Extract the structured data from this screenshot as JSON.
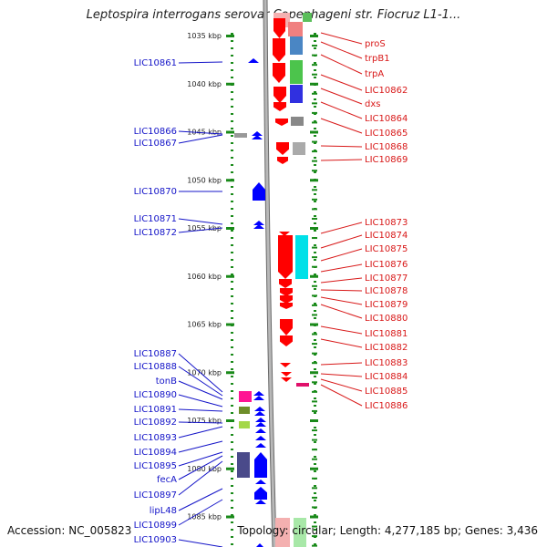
{
  "title": "Leptospira interrogans serovar Copenhageni str. Fiocruz L1-1...",
  "footer": {
    "accession": "Accession: NC_005823",
    "summary": "Topology: circular; Length: 4,277,185 bp; Genes: 3,436"
  },
  "kbp_ticks": [
    {
      "label": "1035 kbp",
      "kbp": 1035
    },
    {
      "label": "1040 kbp",
      "kbp": 1040
    },
    {
      "label": "1045 kbp",
      "kbp": 1045
    },
    {
      "label": "1050 kbp",
      "kbp": 1050
    },
    {
      "label": "1055 kbp",
      "kbp": 1055
    },
    {
      "label": "1060 kbp",
      "kbp": 1060
    },
    {
      "label": "1065 kbp",
      "kbp": 1065
    },
    {
      "label": "1070 kbp",
      "kbp": 1070
    },
    {
      "label": "1075 kbp",
      "kbp": 1075
    },
    {
      "label": "1080 kbp",
      "kbp": 1080
    },
    {
      "label": "1085 kbp",
      "kbp": 1085
    }
  ],
  "left_genes": [
    "LIC10861",
    "LIC10866",
    "LIC10867",
    "LIC10870",
    "LIC10871",
    "LIC10872",
    "LIC10887",
    "LIC10888",
    "tonB",
    "LIC10890",
    "LIC10891",
    "LIC10892",
    "LIC10893",
    "LIC10894",
    "LIC10895",
    "fecA",
    "LIC10897",
    "lipL48",
    "LIC10899",
    "LIC10903"
  ],
  "right_genes": [
    "proS",
    "trpB1",
    "trpA",
    "LIC10862",
    "dxs",
    "LIC10864",
    "LIC10865",
    "LIC10868",
    "LIC10869",
    "LIC10873",
    "LIC10874",
    "LIC10875",
    "LIC10876",
    "LIC10877",
    "LIC10878",
    "LIC10879",
    "LIC10880",
    "LIC10881",
    "LIC10882",
    "LIC10883",
    "LIC10884",
    "LIC10885",
    "LIC10886"
  ],
  "colors": {
    "forward_strand": "#ff0000",
    "reverse_strand": "#0000ff",
    "left_label": "#1414c8",
    "right_label": "#d81818",
    "tick": "#1a8a1a",
    "backbone": "#999999"
  }
}
